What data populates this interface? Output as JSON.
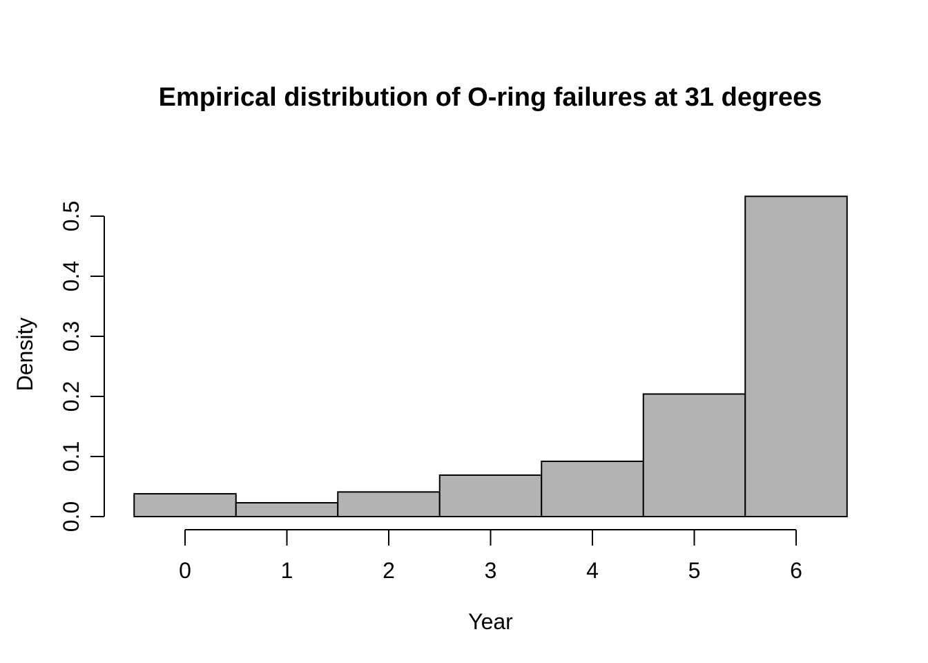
{
  "chart_data": {
    "type": "bar",
    "subtype": "histogram",
    "title": "Empirical distribution of O-ring failures at 31 degrees",
    "xlabel": "Year",
    "ylabel": "Density",
    "categories": [
      0,
      1,
      2,
      3,
      4,
      5,
      6
    ],
    "values": [
      0.038,
      0.023,
      0.041,
      0.069,
      0.092,
      0.204,
      0.533
    ],
    "bin_width": 1,
    "xlim": [
      -0.5,
      6.5
    ],
    "ylim": [
      0,
      0.5
    ],
    "x_tick_labels": [
      "0",
      "1",
      "2",
      "3",
      "4",
      "5",
      "6"
    ],
    "y_tick_labels": [
      "0.0",
      "0.1",
      "0.2",
      "0.3",
      "0.4",
      "0.5"
    ],
    "grid": false,
    "legend_position": "none",
    "colors": {
      "bar_fill": "#b3b3b3",
      "bar_stroke": "#000000",
      "axis_stroke": "#000000",
      "text": "#000000",
      "background": "#ffffff"
    }
  }
}
